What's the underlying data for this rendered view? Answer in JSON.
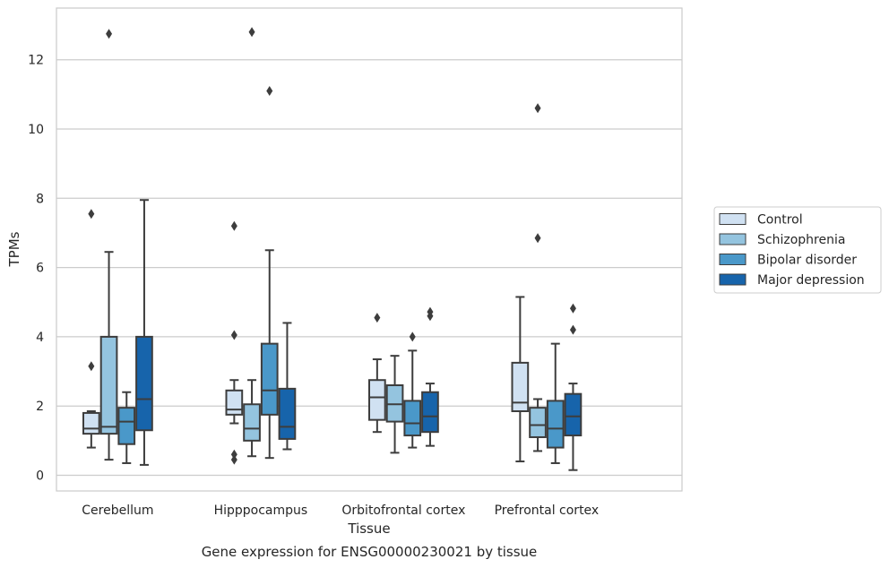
{
  "chart_data": {
    "type": "box",
    "xlabel": "Tissue",
    "ylabel": "TPMs",
    "caption": "Gene expression for ENSG00000230021 by tissue",
    "ylim": [
      -0.45,
      13.5
    ],
    "yticks": [
      0,
      2,
      4,
      6,
      8,
      10,
      12
    ],
    "grid": "horizontal",
    "legend_position": "outside-right",
    "categories": [
      "Cerebellum",
      "Hipppocampus",
      "Orbitofrontal cortex",
      "Prefrontal cortex"
    ],
    "series": [
      {
        "name": "Control",
        "color": "#d0e1f2",
        "boxes": [
          {
            "whislo": 0.8,
            "q1": 1.2,
            "med": 1.35,
            "q3": 1.8,
            "whishi": 1.85,
            "fliers": [
              3.15,
              7.55
            ]
          },
          {
            "whislo": 1.5,
            "q1": 1.75,
            "med": 1.9,
            "q3": 2.45,
            "whishi": 2.75,
            "fliers": [
              0.45,
              0.6,
              4.05,
              7.2
            ]
          },
          {
            "whislo": 1.25,
            "q1": 1.6,
            "med": 2.25,
            "q3": 2.75,
            "whishi": 3.35,
            "fliers": [
              4.55
            ]
          },
          {
            "whislo": 0.4,
            "q1": 1.85,
            "med": 2.1,
            "q3": 3.25,
            "whishi": 5.15,
            "fliers": []
          }
        ]
      },
      {
        "name": "Schizophrenia",
        "color": "#94c4df",
        "boxes": [
          {
            "whislo": 0.45,
            "q1": 1.2,
            "med": 1.4,
            "q3": 4.0,
            "whishi": 6.45,
            "fliers": [
              12.75
            ]
          },
          {
            "whislo": 0.55,
            "q1": 1.0,
            "med": 1.35,
            "q3": 2.05,
            "whishi": 2.75,
            "fliers": [
              12.8
            ]
          },
          {
            "whislo": 0.65,
            "q1": 1.55,
            "med": 2.05,
            "q3": 2.6,
            "whishi": 3.45,
            "fliers": []
          },
          {
            "whislo": 0.7,
            "q1": 1.1,
            "med": 1.45,
            "q3": 1.95,
            "whishi": 2.2,
            "fliers": [
              6.85,
              10.6
            ]
          }
        ]
      },
      {
        "name": "Bipolar disorder",
        "color": "#4a98c9",
        "boxes": [
          {
            "whislo": 0.35,
            "q1": 0.9,
            "med": 1.55,
            "q3": 1.95,
            "whishi": 2.4,
            "fliers": []
          },
          {
            "whislo": 0.5,
            "q1": 1.75,
            "med": 2.45,
            "q3": 3.8,
            "whishi": 6.5,
            "fliers": [
              11.1
            ]
          },
          {
            "whislo": 0.8,
            "q1": 1.15,
            "med": 1.5,
            "q3": 2.15,
            "whishi": 3.6,
            "fliers": [
              4.0
            ]
          },
          {
            "whislo": 0.35,
            "q1": 0.8,
            "med": 1.35,
            "q3": 2.15,
            "whishi": 3.8,
            "fliers": []
          }
        ]
      },
      {
        "name": "Major depression",
        "color": "#1764ab",
        "boxes": [
          {
            "whislo": 0.3,
            "q1": 1.3,
            "med": 2.2,
            "q3": 4.0,
            "whishi": 7.95,
            "fliers": []
          },
          {
            "whislo": 0.75,
            "q1": 1.05,
            "med": 1.4,
            "q3": 2.5,
            "whishi": 4.4,
            "fliers": []
          },
          {
            "whislo": 0.85,
            "q1": 1.25,
            "med": 1.7,
            "q3": 2.4,
            "whishi": 2.65,
            "fliers": [
              4.6,
              4.72
            ]
          },
          {
            "whislo": 0.15,
            "q1": 1.15,
            "med": 1.7,
            "q3": 2.35,
            "whishi": 2.65,
            "fliers": [
              4.2,
              4.82
            ]
          }
        ]
      }
    ]
  }
}
